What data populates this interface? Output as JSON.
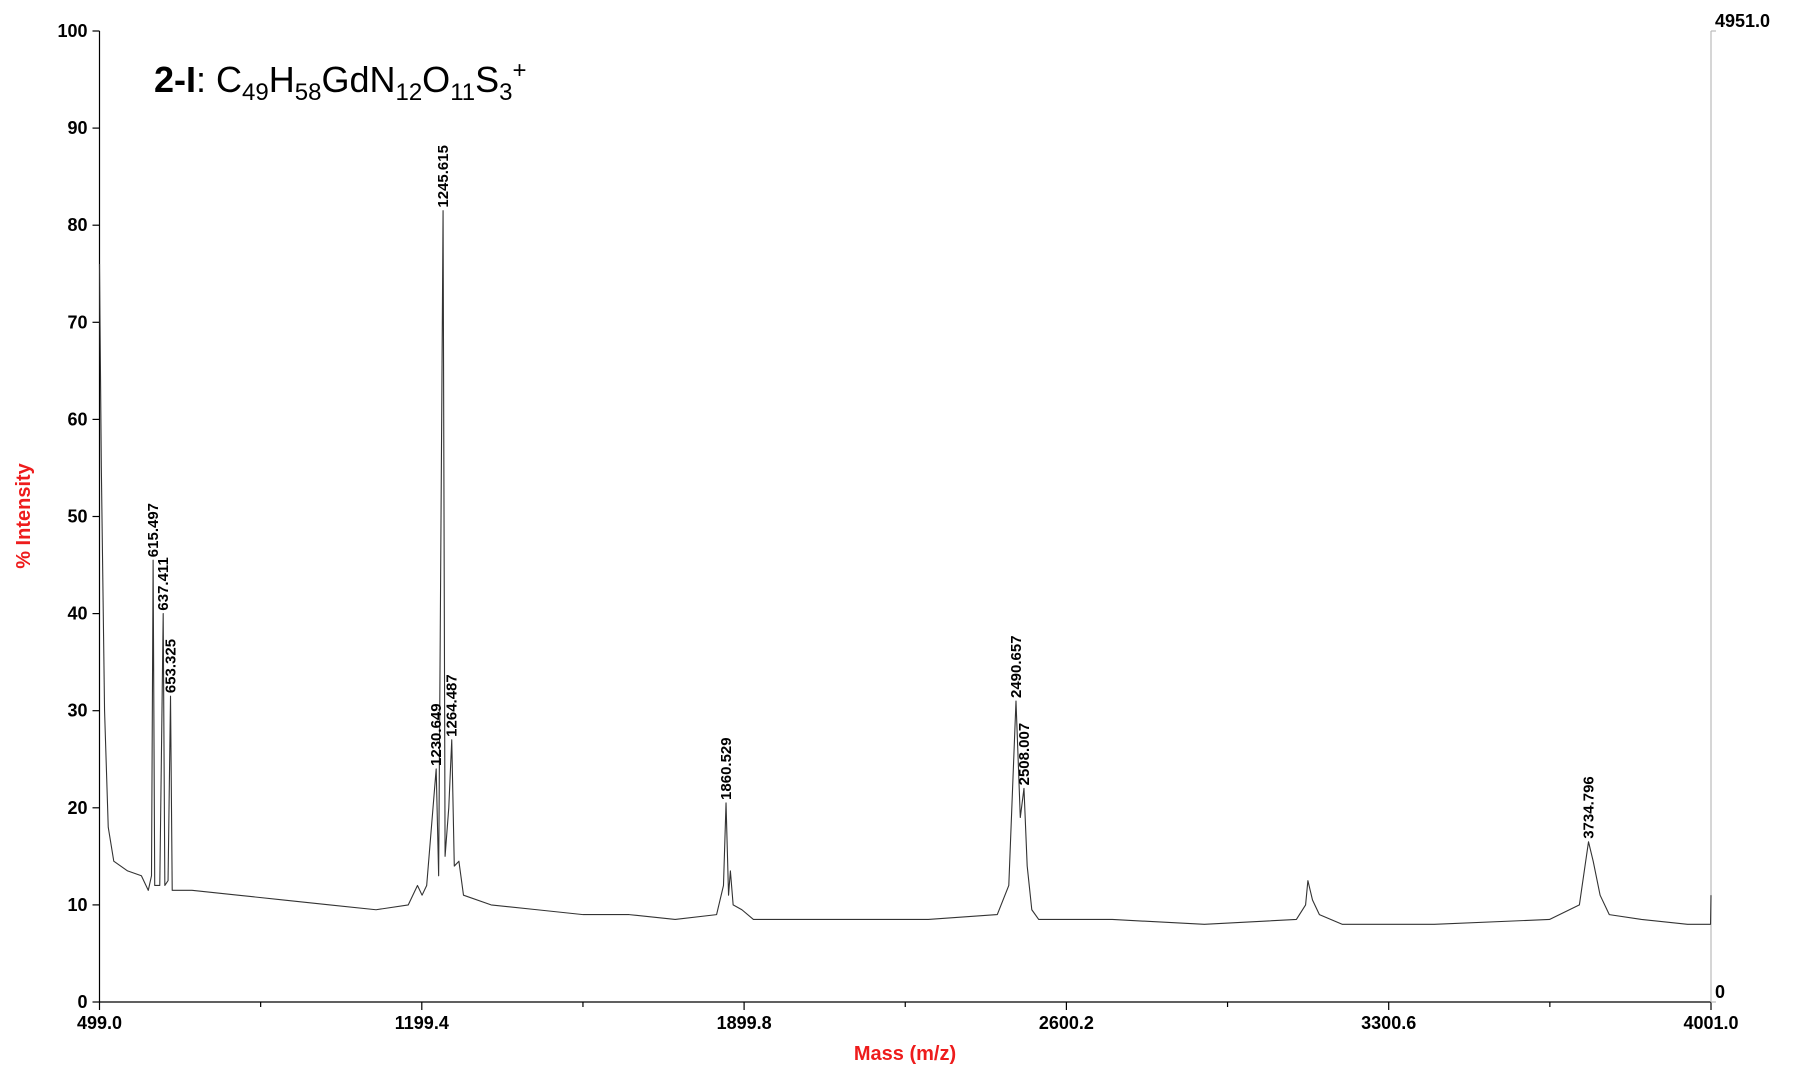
{
  "chart_data": {
    "type": "line",
    "title": [
      {
        "text": "2-I",
        "style": "bold"
      },
      {
        "text": ": C"
      },
      {
        "text": "49",
        "style": "sub"
      },
      {
        "text": "H"
      },
      {
        "text": "58",
        "style": "sub"
      },
      {
        "text": "GdN"
      },
      {
        "text": "12",
        "style": "sub"
      },
      {
        "text": "O"
      },
      {
        "text": "11",
        "style": "sub"
      },
      {
        "text": "S"
      },
      {
        "text": "3",
        "style": "sub"
      },
      {
        "text": "+",
        "style": "sup"
      }
    ],
    "x_label": "Mass (m/z)",
    "y_label": "% Intensity",
    "axis_label_color": "#ee1c1c",
    "color": "#333333",
    "xlim": [
      499.0,
      4001.0
    ],
    "xticks": [
      {
        "value": 499.0,
        "label": "499.0"
      },
      {
        "value": 1199.4,
        "label": "1199.4"
      },
      {
        "value": 1899.8,
        "label": "1899.8"
      },
      {
        "value": 2600.2,
        "label": "2600.2"
      },
      {
        "value": 3300.6,
        "label": "3300.6"
      },
      {
        "value": 4001.0,
        "label": "4001.0"
      }
    ],
    "xminor_ticks": [
      849.2,
      1549.6,
      2250.0,
      2950.4,
      3650.8
    ],
    "ylim": [
      0,
      100
    ],
    "yticks": [
      0,
      10,
      20,
      30,
      40,
      50,
      60,
      70,
      80,
      90,
      100
    ],
    "y2lim": [
      0,
      4951.0
    ],
    "y2ticks": [
      0,
      {
        "value": 4951.0,
        "label": "4951.0"
      }
    ],
    "x": [
      499,
      503,
      510,
      518,
      530,
      560,
      590,
      605,
      612,
      615.497,
      619,
      630,
      637.411,
      641,
      648,
      653.325,
      657,
      700,
      800,
      900,
      1000,
      1100,
      1170,
      1190,
      1200,
      1210,
      1230.649,
      1236,
      1245.615,
      1250,
      1258,
      1264.487,
      1270,
      1280,
      1290,
      1350,
      1450,
      1550,
      1650,
      1750,
      1840,
      1855,
      1860.529,
      1866,
      1870,
      1876,
      1895,
      1920,
      2100,
      2300,
      2450,
      2475,
      2490.657,
      2500,
      2508.007,
      2515,
      2525,
      2540,
      2700,
      2900,
      3100,
      3120,
      3125,
      3135,
      3150,
      3200,
      3400,
      3650,
      3715,
      3734.796,
      3745,
      3760,
      3780,
      3850,
      3950,
      4000,
      4001
    ],
    "values": [
      76,
      55,
      30,
      18,
      14.5,
      13.5,
      13,
      11.5,
      13,
      45.5,
      12,
      12,
      40,
      12,
      12.5,
      31.5,
      11.5,
      11.5,
      11,
      10.5,
      10,
      9.5,
      10,
      12,
      11,
      12,
      24,
      13,
      81.5,
      15,
      20,
      27,
      14,
      14.5,
      11,
      10,
      9.5,
      9,
      9,
      8.5,
      9,
      12,
      20.5,
      11,
      13.5,
      10,
      9.5,
      8.5,
      8.5,
      8.5,
      9,
      12,
      31,
      19,
      22,
      14,
      9.5,
      8.5,
      8.5,
      8,
      8.5,
      10,
      12.5,
      10.5,
      9,
      8,
      8,
      8.5,
      10,
      16.5,
      14.5,
      11,
      9,
      8.5,
      8,
      8,
      11
    ],
    "peaks": [
      {
        "x": 615.497,
        "y": 45.5
      },
      {
        "x": 637.411,
        "y": 40
      },
      {
        "x": 653.325,
        "y": 31.5
      },
      {
        "x": 1230.649,
        "y": 24
      },
      {
        "x": 1245.615,
        "y": 81.5
      },
      {
        "x": 1264.487,
        "y": 27
      },
      {
        "x": 1860.529,
        "y": 20.5
      },
      {
        "x": 2490.657,
        "y": 31
      },
      {
        "x": 2508.007,
        "y": 22
      },
      {
        "x": 3734.796,
        "y": 16.5
      }
    ]
  }
}
